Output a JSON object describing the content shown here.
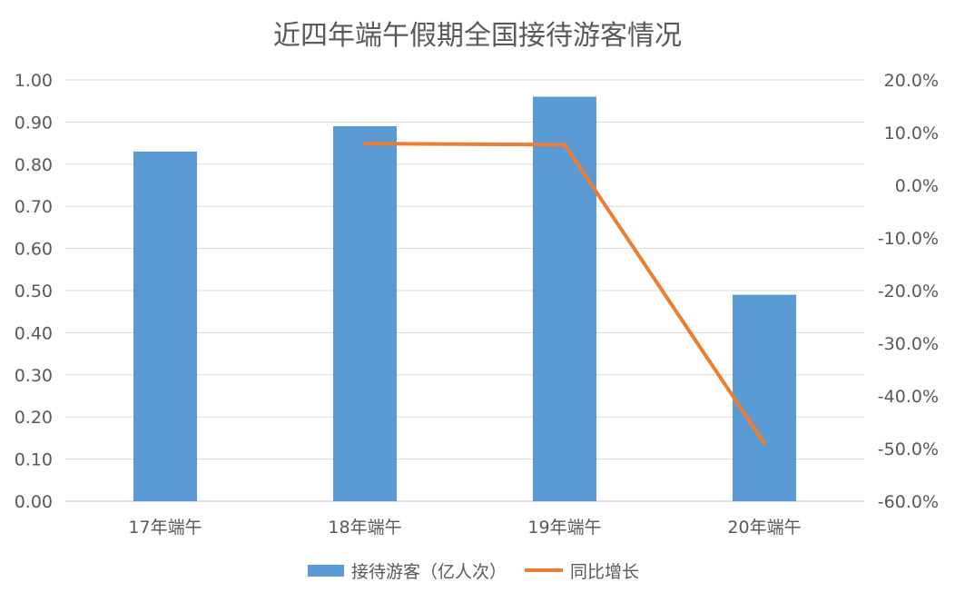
{
  "chart_data": {
    "type": "bar",
    "title": "近四年端午假期全国接待游客情况",
    "categories": [
      "17年端午",
      "18年端午",
      "19年端午",
      "20年端午"
    ],
    "series": [
      {
        "name": "接待游客（亿人次）",
        "type": "bar",
        "axis": "left",
        "color": "#5B9BD5",
        "values": [
          0.83,
          0.89,
          0.96,
          0.49
        ]
      },
      {
        "name": "同比增长",
        "type": "line",
        "axis": "right",
        "color": "#ED7D31",
        "values": [
          null,
          7.9,
          7.7,
          -49.0
        ]
      }
    ],
    "yleft": {
      "min": 0,
      "max": 1,
      "ticks": [
        "0.00",
        "0.10",
        "0.20",
        "0.30",
        "0.40",
        "0.50",
        "0.60",
        "0.70",
        "0.80",
        "0.90",
        "1.00"
      ]
    },
    "yright": {
      "min": -60,
      "max": 20,
      "unit": "%",
      "ticks": [
        "-60.0%",
        "-50.0%",
        "-40.0%",
        "-30.0%",
        "-20.0%",
        "-10.0%",
        "0.0%",
        "10.0%",
        "20.0%"
      ]
    },
    "grid": true,
    "legend_position": "bottom"
  }
}
